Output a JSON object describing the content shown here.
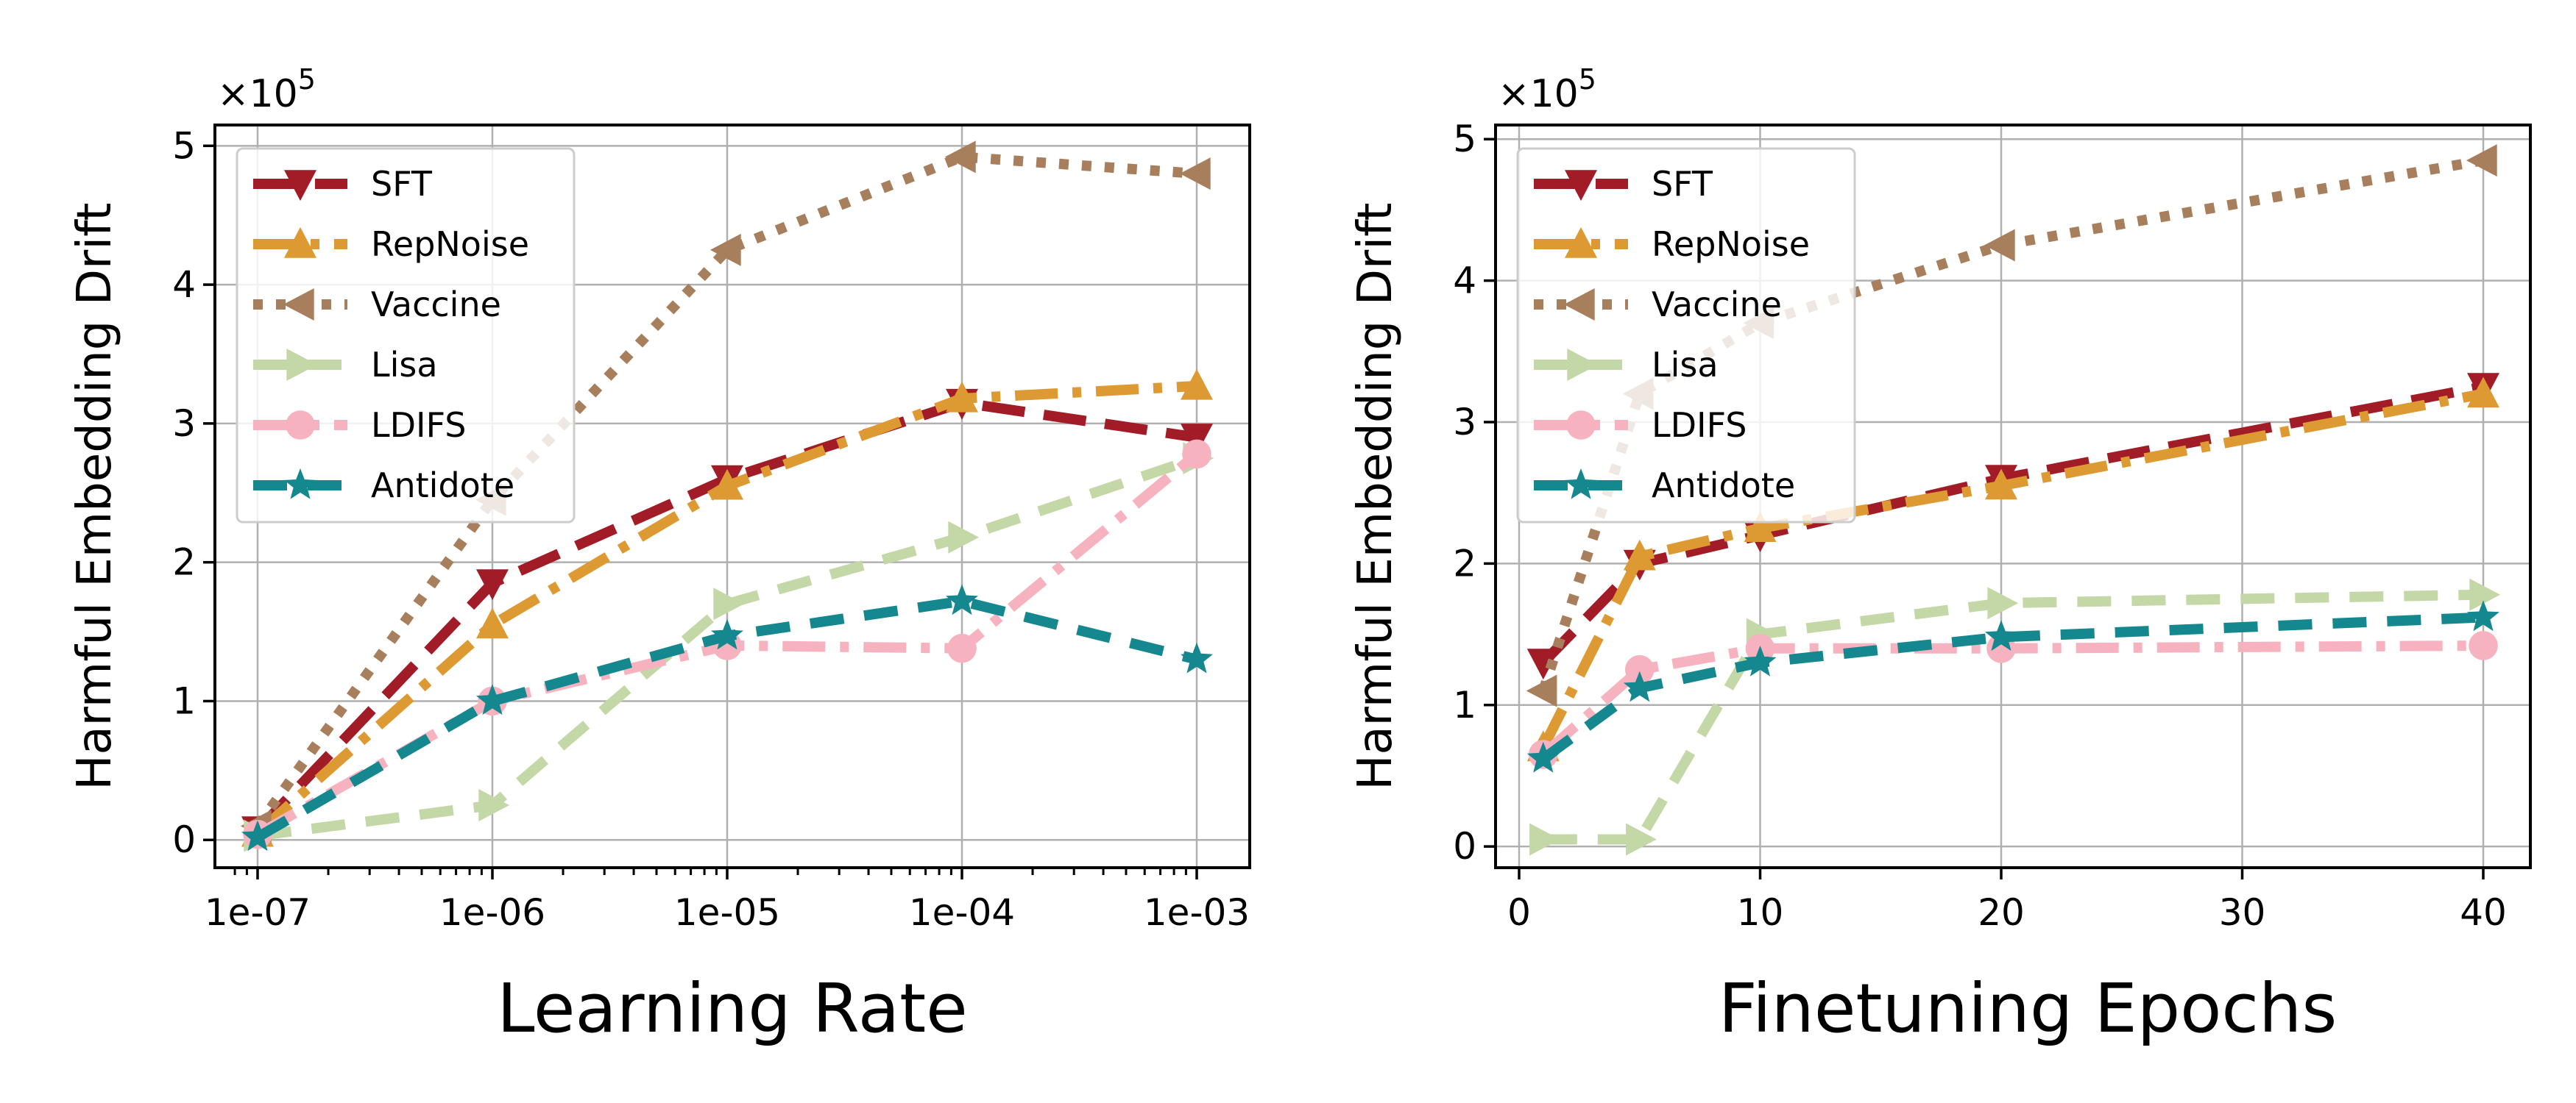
{
  "chart_data": [
    {
      "type": "line",
      "xlabel": "Learning Rate",
      "ylabel": "Harmful Embedding Drift",
      "x_scale": "log",
      "x": [
        1e-07,
        1e-06,
        1e-05,
        0.0001,
        0.001
      ],
      "x_ticks": [
        "1e-07",
        "1e-06",
        "1e-05",
        "1e-04",
        "1e-03"
      ],
      "y_ticks": [
        "0",
        "1",
        "2",
        "3",
        "4",
        "5"
      ],
      "y_multiplier": "×10",
      "y_multiplier_exp": "5",
      "ylim": [
        -0.2,
        5.15
      ],
      "grid": true,
      "legend_position": "top-left",
      "series": [
        {
          "name": "SFT",
          "values": [
            0.07,
            1.85,
            2.6,
            3.15,
            2.9
          ]
        },
        {
          "name": "RepNoise",
          "values": [
            0.05,
            1.55,
            2.55,
            3.18,
            3.27
          ]
        },
        {
          "name": "Vaccine",
          "values": [
            0.1,
            2.45,
            4.25,
            4.92,
            4.8
          ]
        },
        {
          "name": "Lisa",
          "values": [
            0.03,
            0.25,
            1.7,
            2.18,
            2.75
          ]
        },
        {
          "name": "LDIFS",
          "values": [
            0.04,
            1.0,
            1.4,
            1.38,
            2.78
          ]
        },
        {
          "name": "Antidote",
          "values": [
            0.02,
            1.0,
            1.47,
            1.72,
            1.3
          ]
        }
      ]
    },
    {
      "type": "line",
      "xlabel": "Finetuning Epochs",
      "ylabel": "Harmful Embedding Drift",
      "x_scale": "linear",
      "x": [
        1,
        5,
        10,
        20,
        40
      ],
      "x_ticks": [
        "0",
        "10",
        "20",
        "30",
        "40"
      ],
      "y_ticks": [
        "0",
        "1",
        "2",
        "3",
        "4",
        "5"
      ],
      "y_multiplier": "×10",
      "y_multiplier_exp": "5",
      "xlim": [
        -1,
        42
      ],
      "ylim": [
        -0.15,
        5.1
      ],
      "grid": true,
      "legend_position": "top-left",
      "series": [
        {
          "name": "SFT",
          "values": [
            1.3,
            2.0,
            2.2,
            2.6,
            3.25
          ]
        },
        {
          "name": "RepNoise",
          "values": [
            0.7,
            2.05,
            2.25,
            2.55,
            3.2
          ]
        },
        {
          "name": "Vaccine",
          "values": [
            1.1,
            3.2,
            3.7,
            4.25,
            4.85
          ]
        },
        {
          "name": "Lisa",
          "values": [
            0.05,
            0.05,
            1.5,
            1.72,
            1.78
          ]
        },
        {
          "name": "LDIFS",
          "values": [
            0.65,
            1.25,
            1.4,
            1.4,
            1.42
          ]
        },
        {
          "name": "Antidote",
          "values": [
            0.62,
            1.12,
            1.3,
            1.48,
            1.62
          ]
        }
      ]
    }
  ],
  "series_styles": {
    "SFT": {
      "color": "#a11c26",
      "dash": "58,26",
      "marker": "triangle-down"
    },
    "RepNoise": {
      "color": "#de9a32",
      "dash": "58,20,12,20",
      "marker": "triangle-up"
    },
    "Vaccine": {
      "color": "#a87f5d",
      "dash": "13,18",
      "marker": "triangle-left"
    },
    "Lisa": {
      "color": "#c3d8a6",
      "dash": "46,28",
      "marker": "triangle-right"
    },
    "LDIFS": {
      "color": "#f6b3bf",
      "dash": "58,20,12,20",
      "marker": "circle"
    },
    "Antidote": {
      "color": "#15878f",
      "dash": "46,28",
      "marker": "star"
    }
  }
}
